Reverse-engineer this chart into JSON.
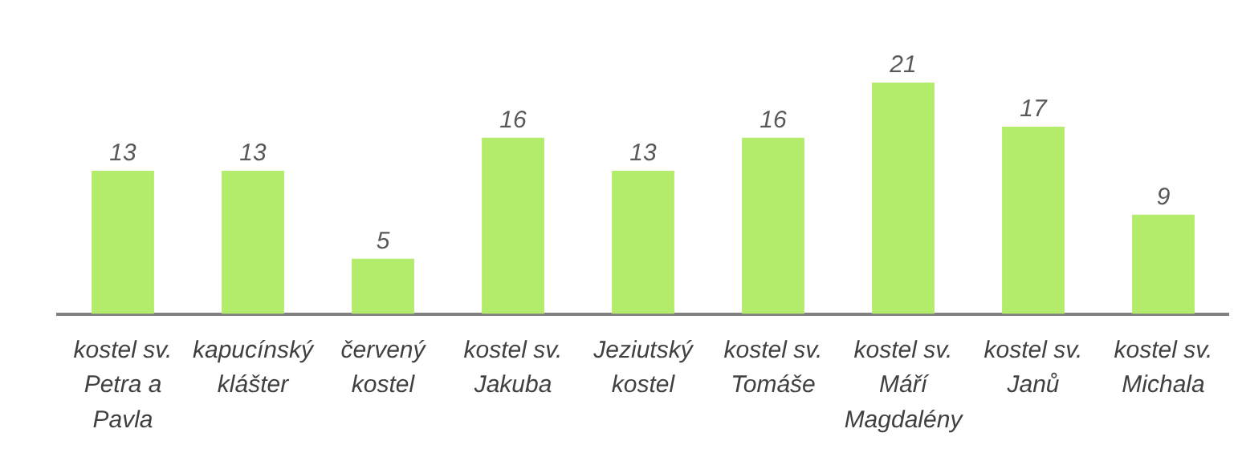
{
  "chart_data": {
    "type": "bar",
    "categories": [
      "kostel sv. Petra a Pavla",
      "kapucínský klášter",
      "červený kostel",
      "kostel sv. Jakuba",
      "Jeziutský kostel",
      "kostel sv. Tomáše",
      "kostel sv. Máří Magdalény",
      "kostel sv. Janů",
      "kostel sv. Michala"
    ],
    "values": [
      13,
      13,
      5,
      16,
      13,
      16,
      21,
      17,
      9
    ],
    "color": "#b3eb6a",
    "data_labels": true,
    "grid": false,
    "legend": false,
    "tick_labels": "x"
  }
}
